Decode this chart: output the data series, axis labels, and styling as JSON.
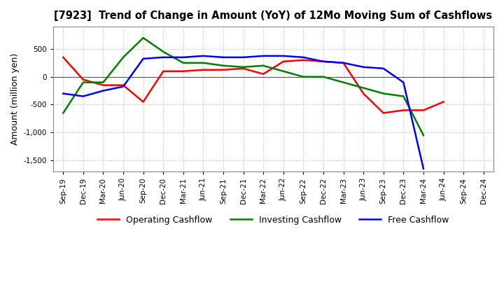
{
  "title": "[7923]  Trend of Change in Amount (YoY) of 12Mo Moving Sum of Cashflows",
  "ylabel": "Amount (million yen)",
  "x_labels": [
    "Sep-19",
    "Dec-19",
    "Mar-20",
    "Jun-20",
    "Sep-20",
    "Dec-20",
    "Mar-21",
    "Jun-21",
    "Sep-21",
    "Dec-21",
    "Mar-22",
    "Jun-22",
    "Sep-22",
    "Dec-22",
    "Mar-23",
    "Jun-23",
    "Sep-23",
    "Dec-23",
    "Mar-24",
    "Jun-24",
    "Sep-24",
    "Dec-24"
  ],
  "operating": [
    350,
    -50,
    -150,
    -150,
    -450,
    100,
    100,
    125,
    125,
    150,
    50,
    275,
    300,
    275,
    250,
    -300,
    -650,
    -600,
    -600,
    -450,
    null,
    null
  ],
  "investing": [
    -650,
    -100,
    -100,
    350,
    700,
    450,
    250,
    250,
    200,
    175,
    200,
    100,
    0,
    0,
    -100,
    -200,
    -300,
    -350,
    -1050,
    null,
    null,
    null
  ],
  "free": [
    -300,
    -350,
    -250,
    -175,
    325,
    350,
    350,
    375,
    350,
    350,
    375,
    375,
    350,
    275,
    250,
    175,
    150,
    -100,
    -1650,
    null,
    null,
    null
  ],
  "ylim": [
    -1700,
    900
  ],
  "yticks": [
    500,
    0,
    -500,
    -1000,
    -1500
  ],
  "colors": {
    "operating": "#ff0000",
    "investing": "#008000",
    "free": "#0000ff"
  },
  "legend_labels": [
    "Operating Cashflow",
    "Investing Cashflow",
    "Free Cashflow"
  ],
  "grid_color": "#bbbbbb",
  "grid_style": "dotted",
  "background_color": "#ffffff"
}
